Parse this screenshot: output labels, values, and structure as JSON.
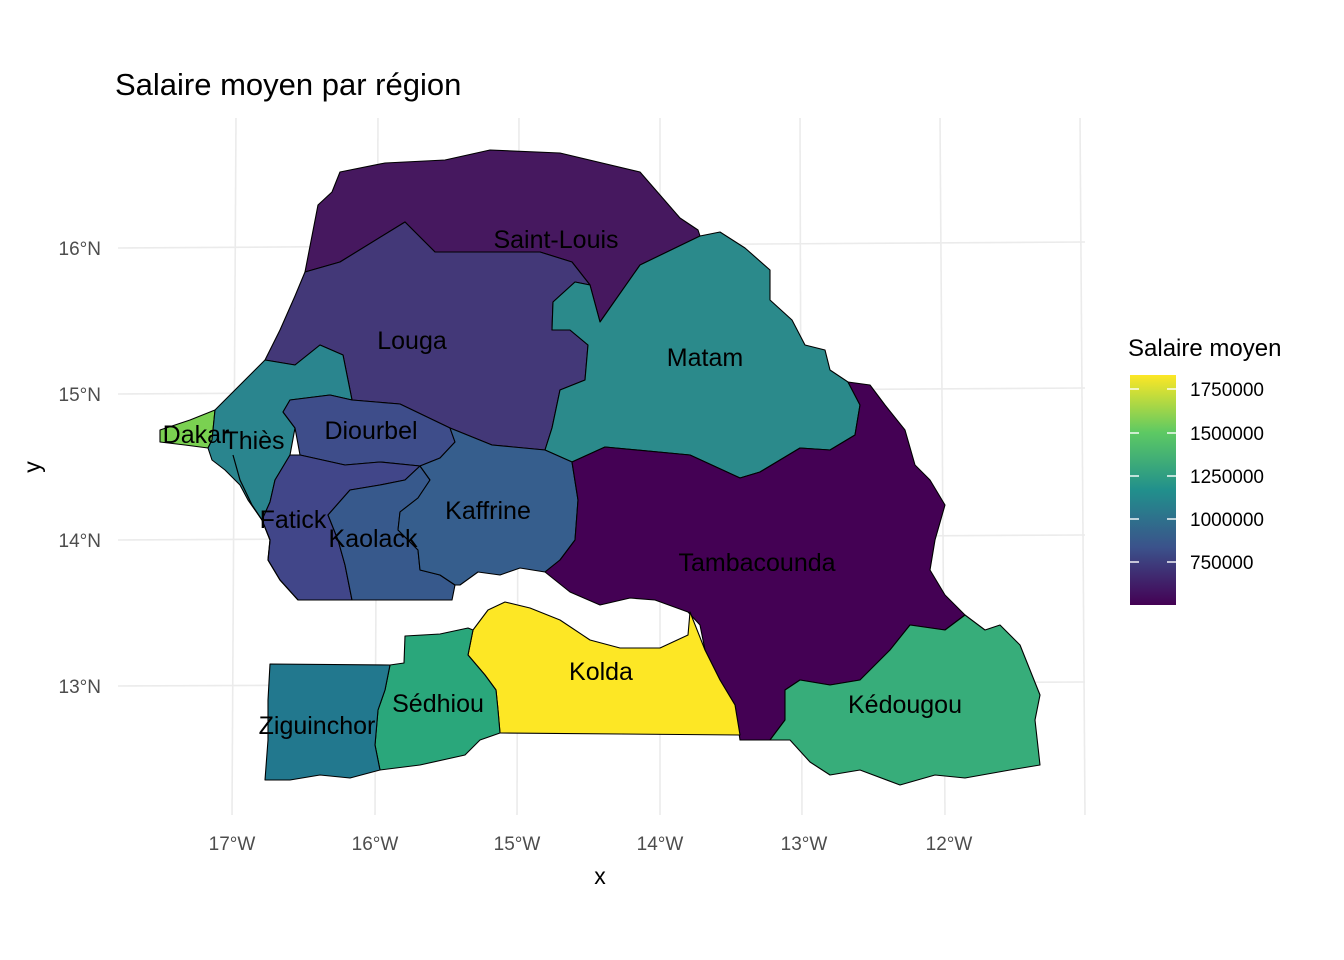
{
  "title": "Salaire moyen par région",
  "axes": {
    "x_label": "x",
    "y_label": "y",
    "x_ticks": [
      "17°W",
      "16°W",
      "15°W",
      "14°W",
      "13°W",
      "12°W"
    ],
    "y_ticks": [
      "16°N",
      "15°N",
      "14°N",
      "13°N"
    ]
  },
  "legend": {
    "title": "Salaire moyen",
    "ticks": [
      "1750000",
      "1500000",
      "1250000",
      "1000000",
      "750000"
    ],
    "colors": [
      "#440154",
      "#3b528b",
      "#21908c",
      "#5dc963",
      "#fde725"
    ]
  },
  "regions": [
    {
      "name": "Saint-Louis",
      "color": "#46185f"
    },
    {
      "name": "Louga",
      "color": "#433878"
    },
    {
      "name": "Matam",
      "color": "#2b8a8b"
    },
    {
      "name": "Dakar",
      "color": "#7ad151"
    },
    {
      "name": "Thiès",
      "color": "#2a858e"
    },
    {
      "name": "Diourbel",
      "color": "#3e4d8a"
    },
    {
      "name": "Fatick",
      "color": "#414689"
    },
    {
      "name": "Kaolack",
      "color": "#37598c"
    },
    {
      "name": "Kaffrine",
      "color": "#365e8d"
    },
    {
      "name": "Tambacounda",
      "color": "#440154"
    },
    {
      "name": "Kolda",
      "color": "#fde725"
    },
    {
      "name": "Sédhiou",
      "color": "#2aa77b"
    },
    {
      "name": "Ziguinchor",
      "color": "#22788e"
    },
    {
      "name": "Kédougou",
      "color": "#37ad7a"
    }
  ]
}
